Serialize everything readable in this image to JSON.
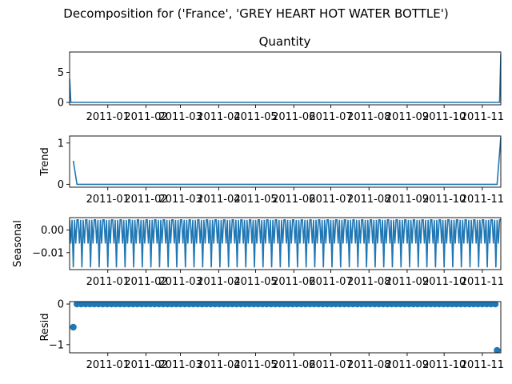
{
  "figure": {
    "suptitle": "Decomposition for ('France', 'GREY HEART HOT WATER BOTTLE')"
  },
  "colors": {
    "series": "#1f77b4",
    "axis": "#000000"
  },
  "chart_data": [
    {
      "type": "line",
      "title": "Quantity",
      "ylabel": "",
      "xlim": [
        -8,
        342
      ],
      "ylim": [
        -0.4,
        8.4
      ],
      "yticks": [
        {
          "v": 0,
          "label": "0"
        },
        {
          "v": 5,
          "label": "5"
        }
      ],
      "xticks": [
        {
          "v": 23,
          "label": "2011-01"
        },
        {
          "v": 54,
          "label": "2011-02"
        },
        {
          "v": 82,
          "label": "2011-03"
        },
        {
          "v": 113,
          "label": "2011-04"
        },
        {
          "v": 143,
          "label": "2011-05"
        },
        {
          "v": 174,
          "label": "2011-06"
        },
        {
          "v": 204,
          "label": "2011-07"
        },
        {
          "v": 235,
          "label": "2011-08"
        },
        {
          "v": 266,
          "label": "2011-09"
        },
        {
          "v": 296,
          "label": "2011-10"
        },
        {
          "v": 327,
          "label": "2011-11"
        }
      ],
      "series": [
        {
          "name": "Quantity",
          "points": [
            [
              -8,
              4
            ],
            [
              -7,
              0
            ],
            [
              341,
              0
            ],
            [
              342,
              8
            ]
          ]
        }
      ]
    },
    {
      "type": "line",
      "title": "",
      "ylabel": "Trend",
      "xlim": [
        -8,
        342
      ],
      "ylim": [
        -0.07,
        1.17
      ],
      "yticks": [
        {
          "v": 0,
          "label": "0"
        },
        {
          "v": 1,
          "label": "1"
        }
      ],
      "xticks": [
        {
          "v": 23,
          "label": "2011-01"
        },
        {
          "v": 54,
          "label": "2011-02"
        },
        {
          "v": 82,
          "label": "2011-03"
        },
        {
          "v": 113,
          "label": "2011-04"
        },
        {
          "v": 143,
          "label": "2011-05"
        },
        {
          "v": 174,
          "label": "2011-06"
        },
        {
          "v": 204,
          "label": "2011-07"
        },
        {
          "v": 235,
          "label": "2011-08"
        },
        {
          "v": 266,
          "label": "2011-09"
        },
        {
          "v": 296,
          "label": "2011-10"
        },
        {
          "v": 327,
          "label": "2011-11"
        }
      ],
      "series": [
        {
          "name": "Trend",
          "points": [
            [
              -5,
              0.57
            ],
            [
              -2,
              0.0
            ],
            [
              339,
              0.0
            ],
            [
              342,
              1.14
            ]
          ]
        }
      ]
    },
    {
      "type": "line",
      "title": "",
      "ylabel": "Seasonal",
      "xlim": [
        -8,
        342
      ],
      "ylim": [
        -0.0175,
        0.0055
      ],
      "yticks": [
        {
          "v": 0.0,
          "label": "0.00"
        },
        {
          "v": -0.01,
          "label": "−0.01"
        }
      ],
      "xticks": [
        {
          "v": 23,
          "label": "2011-01"
        },
        {
          "v": 54,
          "label": "2011-02"
        },
        {
          "v": 82,
          "label": "2011-03"
        },
        {
          "v": 113,
          "label": "2011-04"
        },
        {
          "v": 143,
          "label": "2011-05"
        },
        {
          "v": 174,
          "label": "2011-06"
        },
        {
          "v": 204,
          "label": "2011-07"
        },
        {
          "v": 235,
          "label": "2011-08"
        },
        {
          "v": 266,
          "label": "2011-09"
        },
        {
          "v": 296,
          "label": "2011-10"
        },
        {
          "v": 327,
          "label": "2011-11"
        }
      ],
      "series": [
        {
          "name": "Seasonal",
          "period": 7,
          "x_start": -8,
          "x_end": 342,
          "pattern": [
            0.0045,
            -0.006,
            0.0045,
            -0.0165,
            0.0045,
            -0.006,
            0.0045
          ]
        }
      ]
    },
    {
      "type": "scatter",
      "title": "",
      "ylabel": "Resid",
      "xlim": [
        -8,
        342
      ],
      "ylim": [
        -1.2,
        0.06
      ],
      "yticks": [
        {
          "v": 0,
          "label": "0"
        },
        {
          "v": -1,
          "label": "−1"
        }
      ],
      "xticks": [
        {
          "v": 23,
          "label": "2011-01"
        },
        {
          "v": 54,
          "label": "2011-02"
        },
        {
          "v": 82,
          "label": "2011-03"
        },
        {
          "v": 113,
          "label": "2011-04"
        },
        {
          "v": 143,
          "label": "2011-05"
        },
        {
          "v": 174,
          "label": "2011-06"
        },
        {
          "v": 204,
          "label": "2011-07"
        },
        {
          "v": 235,
          "label": "2011-08"
        },
        {
          "v": 266,
          "label": "2011-09"
        },
        {
          "v": 296,
          "label": "2011-10"
        },
        {
          "v": 327,
          "label": "2011-11"
        }
      ],
      "series": [
        {
          "name": "Resid",
          "points": [
            [
              -5,
              -0.57
            ],
            [
              339,
              -1.14
            ]
          ],
          "zero_run": {
            "from": -2,
            "to": 339,
            "value": 0,
            "step": 3.5
          }
        }
      ]
    }
  ]
}
